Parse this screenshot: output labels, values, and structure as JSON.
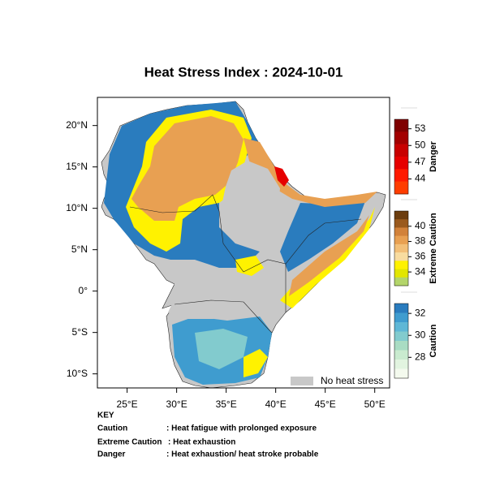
{
  "title": "Heat Stress Index : 2024-10-01",
  "map": {
    "xlim": [
      22,
      51.5
    ],
    "ylim": [
      -11.7,
      23.4
    ],
    "xticks": [
      {
        "value": 25,
        "label": "25°E"
      },
      {
        "value": 30,
        "label": "30°E"
      },
      {
        "value": 35,
        "label": "35°E"
      },
      {
        "value": 40,
        "label": "40°E"
      },
      {
        "value": 45,
        "label": "45°E"
      },
      {
        "value": 50,
        "label": "50°E"
      }
    ],
    "yticks": [
      {
        "value": 20,
        "label": "20°N"
      },
      {
        "value": 15,
        "label": "15°N"
      },
      {
        "value": 10,
        "label": "10°N"
      },
      {
        "value": 5,
        "label": "5°N"
      },
      {
        "value": 0,
        "label": "0°"
      },
      {
        "value": -5,
        "label": "5°S"
      },
      {
        "value": -10,
        "label": "10°S"
      }
    ],
    "legend": {
      "label": "No heat stress",
      "color": "#c8c8c8"
    }
  },
  "colorbars": [
    {
      "label": "Danger",
      "lim": [
        41.3,
        54.7
      ],
      "ticks": [
        53,
        50,
        47,
        44
      ],
      "colors": [
        "#7f0000",
        "#a30000",
        "#c80000",
        "#e60000",
        "#ff1a00",
        "#ff3d00"
      ]
    },
    {
      "label": "Extreme Caution",
      "lim": [
        32.2,
        42
      ],
      "ticks": [
        40,
        38,
        36,
        34
      ],
      "colors": [
        "#6b3d0f",
        "#9a5a1e",
        "#d2823a",
        "#e8a052",
        "#f2bf78",
        "#f8dca0",
        "#fff200",
        "#e2e600",
        "#b3d56a"
      ]
    },
    {
      "label": "Caution",
      "lim": [
        26.1,
        32.9
      ],
      "ticks": [
        32,
        30,
        28
      ],
      "colors": [
        "#2a7cbe",
        "#3f9ccf",
        "#5fb7d6",
        "#82cbce",
        "#a9dcc3",
        "#c9ebcf",
        "#e2f4e0",
        "#f4faee"
      ]
    }
  ],
  "key": {
    "title": "KEY",
    "rows": [
      [
        "Caution",
        ": Heat fatigue with prolonged exposure"
      ],
      [
        "Extreme Caution",
        ": Heat exhaustion"
      ],
      [
        "Danger",
        ": Heat exhaustion/ heat stroke probable"
      ]
    ]
  }
}
